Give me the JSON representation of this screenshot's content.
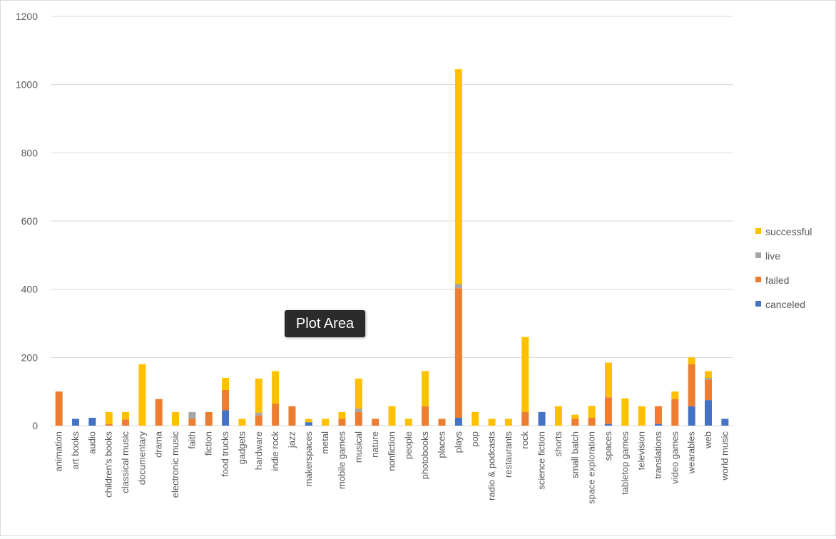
{
  "chart_data": {
    "type": "bar",
    "stacked": true,
    "categories": [
      "animation",
      "art books",
      "audio",
      "children's books",
      "classical music",
      "documentary",
      "drama",
      "electronic music",
      "faith",
      "fiction",
      "food trucks",
      "gadgets",
      "hardware",
      "indie rock",
      "jazz",
      "makerspaces",
      "metal",
      "mobile games",
      "musical",
      "nature",
      "nonfiction",
      "people",
      "photobooks",
      "places",
      "plays",
      "pop",
      "radio & podcasts",
      "restaurants",
      "rock",
      "science fiction",
      "shorts",
      "small batch",
      "space exploration",
      "spaces",
      "tabletop games",
      "television",
      "translations",
      "video games",
      "wearables",
      "web",
      "world music"
    ],
    "series": [
      {
        "name": "canceled",
        "color": "#4472C4",
        "values": [
          0,
          20,
          23,
          0,
          0,
          0,
          0,
          0,
          0,
          0,
          45,
          0,
          0,
          0,
          0,
          10,
          0,
          0,
          0,
          0,
          0,
          0,
          0,
          0,
          23,
          0,
          0,
          0,
          0,
          40,
          0,
          0,
          0,
          5,
          0,
          0,
          5,
          0,
          57,
          75,
          20
        ]
      },
      {
        "name": "failed",
        "color": "#ED7D31",
        "values": [
          100,
          0,
          0,
          5,
          18,
          0,
          78,
          0,
          20,
          40,
          60,
          0,
          30,
          65,
          57,
          0,
          0,
          20,
          40,
          20,
          0,
          0,
          57,
          20,
          380,
          0,
          0,
          0,
          40,
          0,
          0,
          20,
          23,
          78,
          0,
          0,
          52,
          78,
          123,
          60,
          0
        ]
      },
      {
        "name": "live",
        "color": "#A5A5A5",
        "values": [
          0,
          0,
          0,
          0,
          0,
          0,
          0,
          0,
          20,
          0,
          0,
          0,
          8,
          0,
          0,
          0,
          0,
          0,
          10,
          0,
          0,
          0,
          0,
          0,
          12,
          0,
          0,
          0,
          0,
          0,
          0,
          0,
          0,
          0,
          0,
          0,
          0,
          0,
          0,
          5,
          0
        ]
      },
      {
        "name": "successful",
        "color": "#FFC000",
        "values": [
          0,
          0,
          0,
          35,
          22,
          180,
          0,
          40,
          0,
          0,
          35,
          20,
          100,
          95,
          0,
          10,
          20,
          20,
          88,
          0,
          57,
          20,
          103,
          0,
          630,
          40,
          20,
          20,
          220,
          0,
          57,
          12,
          35,
          102,
          80,
          57,
          0,
          22,
          20,
          20,
          0
        ]
      }
    ],
    "ylim": [
      0,
      1200
    ],
    "yticks": [
      0,
      200,
      400,
      600,
      800,
      1000,
      1200
    ],
    "grid": true,
    "legend_position": "right",
    "legend_order": [
      "successful",
      "live",
      "failed",
      "canceled"
    ],
    "title": "",
    "xlabel": "",
    "ylabel": ""
  },
  "tooltip": {
    "label": "Plot Area"
  }
}
